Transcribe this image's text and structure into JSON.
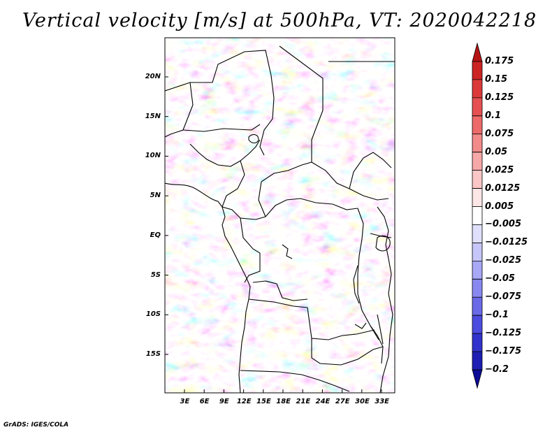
{
  "title": "Vertical velocity [m/s] at 500hPa, VT: 2020042218",
  "credit": "GrADS: IGES/COLA",
  "lat_ticks": [
    {
      "label": "20N",
      "lat": 20
    },
    {
      "label": "15N",
      "lat": 15
    },
    {
      "label": "10N",
      "lat": 10
    },
    {
      "label": "5N",
      "lat": 5
    },
    {
      "label": "EQ",
      "lat": 0
    },
    {
      "label": "5S",
      "lat": -5
    },
    {
      "label": "10S",
      "lat": -10
    },
    {
      "label": "15S",
      "lat": -15
    }
  ],
  "lon_ticks": [
    {
      "label": "3E",
      "lon": 3
    },
    {
      "label": "6E",
      "lon": 6
    },
    {
      "label": "9E",
      "lon": 9
    },
    {
      "label": "12E",
      "lon": 12
    },
    {
      "label": "15E",
      "lon": 15
    },
    {
      "label": "18E",
      "lon": 18
    },
    {
      "label": "21E",
      "lon": 21
    },
    {
      "label": "24E",
      "lon": 24
    },
    {
      "label": "27E",
      "lon": 27
    },
    {
      "label": "30E",
      "lon": 30
    },
    {
      "label": "33E",
      "lon": 33
    }
  ],
  "colorbar": {
    "levels": [
      "0.175",
      "0.15",
      "0.125",
      "0.1",
      "0.075",
      "0.05",
      "0.025",
      "0.0125",
      "0.005",
      "-0.005",
      "-0.0125",
      "-0.025",
      "-0.05",
      "-0.075",
      "-0.1",
      "-0.125",
      "-0.175",
      "-0.2"
    ],
    "colors": [
      "#b41414",
      "#cc2424",
      "#dc3a3a",
      "#e65050",
      "#ee6a6a",
      "#f28a8a",
      "#f6a8a8",
      "#fac6c6",
      "#fde6e6",
      "#ffffff",
      "#e0e0fc",
      "#c6c6fa",
      "#a8a8f6",
      "#8888f0",
      "#6a6ae8",
      "#4c4ce0",
      "#3232cc",
      "#1e1eb4",
      "#0c0c96"
    ]
  }
}
